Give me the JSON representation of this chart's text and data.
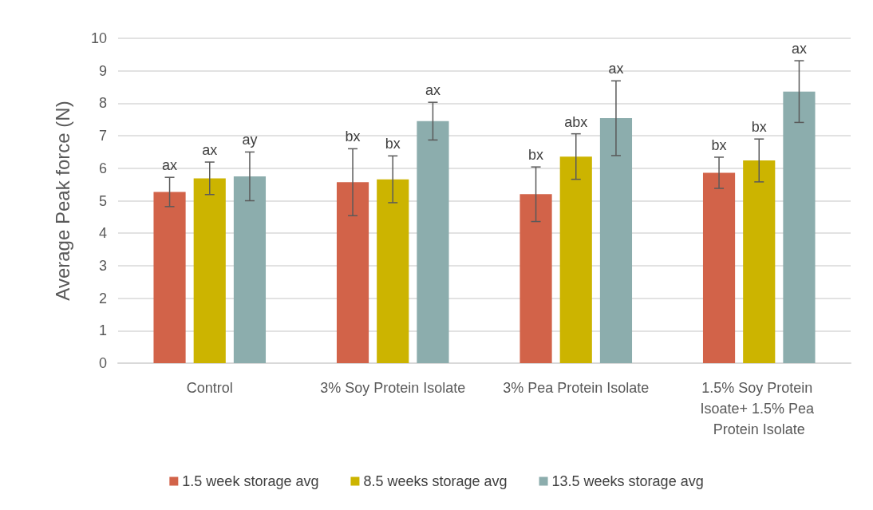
{
  "chart_data": {
    "type": "bar",
    "ylabel": "Average Peak force (N)",
    "categories": [
      "Control",
      "3% Soy Protein Isolate",
      "3% Pea Protein Isolate",
      "1.5% Soy Protein Isoate+ 1.5% Pea Protein Isolate"
    ],
    "series": [
      {
        "name": "1.5 week storage avg",
        "color": "#d26349",
        "values": [
          5.27,
          5.57,
          5.2,
          5.86
        ],
        "errors": [
          0.45,
          1.03,
          0.84,
          0.48
        ],
        "value_labels": [
          "ax",
          "bx",
          "bx",
          "bx"
        ]
      },
      {
        "name": "8.5 weeks storage avg",
        "color": "#ccb400",
        "values": [
          5.69,
          5.66,
          6.36,
          6.24
        ],
        "errors": [
          0.5,
          0.72,
          0.7,
          0.66
        ],
        "value_labels": [
          "ax",
          "bx",
          "abx",
          "bx"
        ]
      },
      {
        "name": "13.5 weeks storage avg",
        "color": "#8cadad",
        "values": [
          5.75,
          7.45,
          7.54,
          8.36
        ],
        "errors": [
          0.75,
          0.58,
          1.15,
          0.95
        ],
        "value_labels": [
          "ay",
          "ax",
          "ax",
          "ax"
        ]
      }
    ],
    "ylim": [
      0,
      10
    ],
    "yticks": [
      0,
      1,
      2,
      3,
      4,
      5,
      6,
      7,
      8,
      9,
      10
    ],
    "grid": "y",
    "legend": "bottom"
  }
}
